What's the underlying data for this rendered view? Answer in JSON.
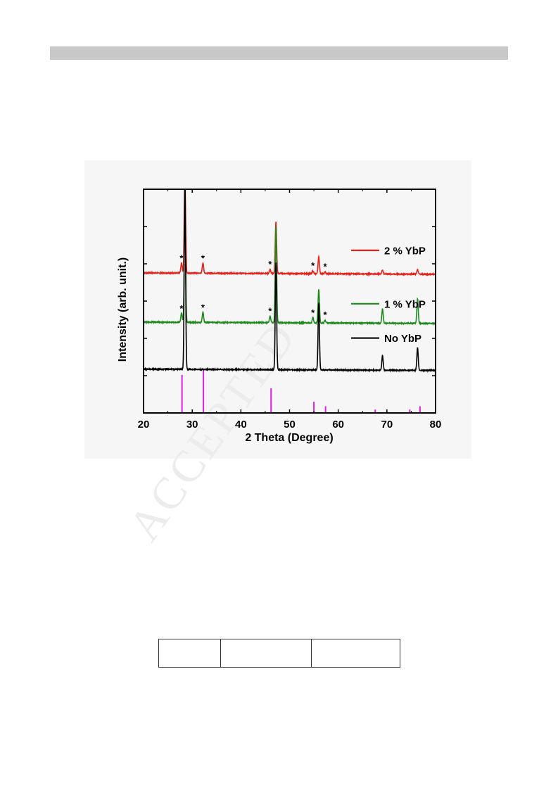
{
  "watermark": "ACCEPTED",
  "chart_data": {
    "type": "line",
    "xlabel": "2 Theta (Degree)",
    "ylabel": "Intensity (arb. unit.)",
    "xlim": [
      20,
      80
    ],
    "xticks": [
      20,
      30,
      40,
      50,
      60,
      70,
      80
    ],
    "legend_position": "right",
    "series": [
      {
        "name": "2 % YbP",
        "color": "#e8201a",
        "baseline": 0.62,
        "peaks": [
          {
            "x": 27.8,
            "h": 0.045
          },
          {
            "x": 28.5,
            "h": 0.42
          },
          {
            "x": 32.2,
            "h": 0.045
          },
          {
            "x": 46.0,
            "h": 0.018
          },
          {
            "x": 47.2,
            "h": 0.23
          },
          {
            "x": 54.8,
            "h": 0.012
          },
          {
            "x": 56.0,
            "h": 0.075
          },
          {
            "x": 57.3,
            "h": 0.008
          },
          {
            "x": 69.1,
            "h": 0.018
          },
          {
            "x": 76.3,
            "h": 0.02
          }
        ],
        "star_peaks": [
          27.8,
          32.2,
          46.0,
          54.8,
          57.3
        ]
      },
      {
        "name": "1 % YbP",
        "color": "#1e8a1e",
        "baseline": 0.4,
        "peaks": [
          {
            "x": 27.8,
            "h": 0.04
          },
          {
            "x": 28.5,
            "h": 0.52
          },
          {
            "x": 32.2,
            "h": 0.045
          },
          {
            "x": 46.0,
            "h": 0.03
          },
          {
            "x": 47.2,
            "h": 0.43
          },
          {
            "x": 54.8,
            "h": 0.022
          },
          {
            "x": 56.0,
            "h": 0.15
          },
          {
            "x": 57.3,
            "h": 0.012
          },
          {
            "x": 69.1,
            "h": 0.065
          },
          {
            "x": 76.3,
            "h": 0.11
          }
        ],
        "star_peaks": [
          27.8,
          32.2,
          46.0,
          54.8,
          57.3
        ]
      },
      {
        "name": "No YbP",
        "color": "#000000",
        "baseline": 0.19,
        "peaks": [
          {
            "x": 28.5,
            "h": 0.85
          },
          {
            "x": 47.2,
            "h": 0.48
          },
          {
            "x": 56.0,
            "h": 0.3
          },
          {
            "x": 69.1,
            "h": 0.065
          },
          {
            "x": 76.3,
            "h": 0.1
          }
        ],
        "star_peaks": []
      }
    ],
    "reference_lines": {
      "color": "#e020e0",
      "lines": [
        {
          "x": 27.9,
          "h": 0.17
        },
        {
          "x": 32.3,
          "h": 0.19
        },
        {
          "x": 46.2,
          "h": 0.11
        },
        {
          "x": 55.0,
          "h": 0.05
        },
        {
          "x": 57.4,
          "h": 0.03
        },
        {
          "x": 67.6,
          "h": 0.015
        },
        {
          "x": 74.7,
          "h": 0.015
        },
        {
          "x": 76.8,
          "h": 0.03
        }
      ]
    },
    "star_label": "*"
  }
}
